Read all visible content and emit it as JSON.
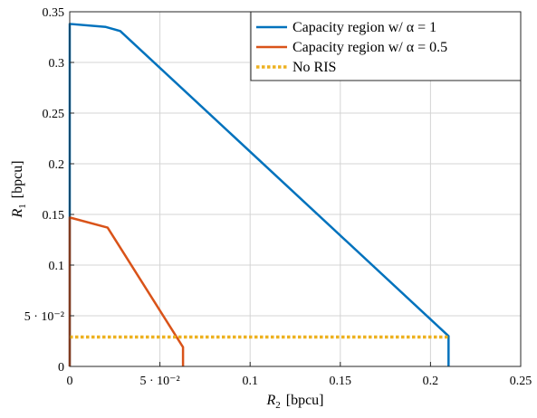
{
  "chart_data": {
    "type": "line",
    "xlabel_main": "R",
    "xlabel_sub": "2",
    "xlabel_unit": "[bpcu]",
    "ylabel_main": "R",
    "ylabel_sub": "1",
    "ylabel_unit": "[bpcu]",
    "xlim": [
      0,
      0.25
    ],
    "ylim": [
      0,
      0.35
    ],
    "grid": true,
    "legend_position": "top-right",
    "xticks": [
      {
        "value": 0,
        "label": "0"
      },
      {
        "value": 0.05,
        "label": "5 · 10⁻²"
      },
      {
        "value": 0.1,
        "label": "0.1"
      },
      {
        "value": 0.15,
        "label": "0.15"
      },
      {
        "value": 0.2,
        "label": "0.2"
      },
      {
        "value": 0.25,
        "label": "0.25"
      }
    ],
    "yticks": [
      {
        "value": 0,
        "label": "0"
      },
      {
        "value": 0.05,
        "label": "5 · 10⁻²"
      },
      {
        "value": 0.1,
        "label": "0.1"
      },
      {
        "value": 0.15,
        "label": "0.15"
      },
      {
        "value": 0.2,
        "label": "0.2"
      },
      {
        "value": 0.25,
        "label": "0.25"
      },
      {
        "value": 0.3,
        "label": "0.3"
      },
      {
        "value": 0.35,
        "label": "0.35"
      }
    ],
    "series": [
      {
        "name": "Capacity region w/ α = 1",
        "color": "#0072BD",
        "style": "solid",
        "x": [
          0,
          0,
          0.02,
          0.024,
          0.028,
          0.21,
          0.21
        ],
        "y": [
          0,
          0.338,
          0.335,
          0.333,
          0.331,
          0.03,
          0
        ]
      },
      {
        "name": "Capacity region w/ α = 0.5",
        "color": "#D95319",
        "style": "solid",
        "x": [
          0,
          0,
          0.021,
          0.0628,
          0.0628
        ],
        "y": [
          0,
          0.147,
          0.137,
          0.019,
          0
        ]
      },
      {
        "name": "No RIS",
        "color": "#EDB120",
        "style": "dotted",
        "x": [
          0,
          0.21
        ],
        "y": [
          0.029,
          0.029
        ]
      }
    ]
  }
}
